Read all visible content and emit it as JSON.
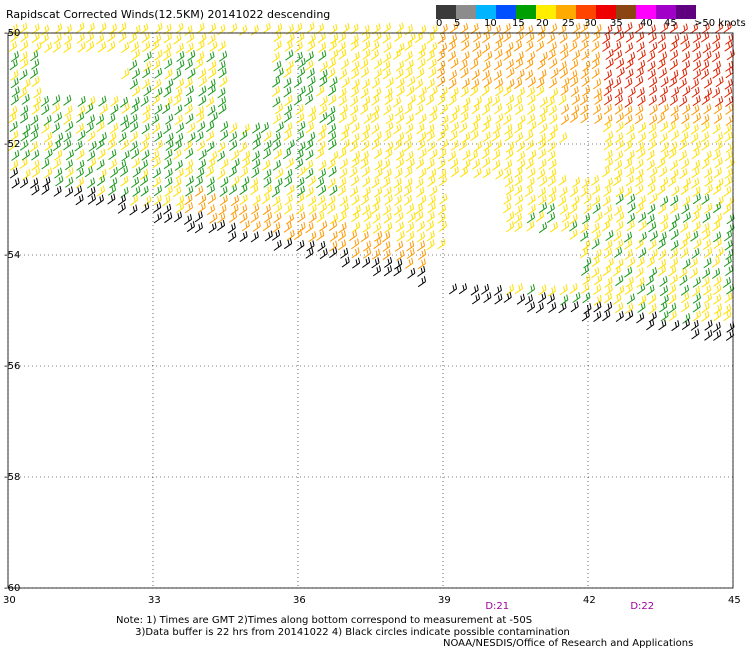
{
  "title": "Rapidscat Corrected Winds(12.5KM) 20141022 descending",
  "legend": {
    "labels": [
      "0",
      "5",
      "10",
      "15",
      "20",
      "25",
      "30",
      "35",
      "40",
      "45",
      ">50 knots"
    ],
    "colors": [
      "#3a3a3a",
      "#8c8c8c",
      "#00b4ff",
      "#0050ff",
      "#00a000",
      "#ffee00",
      "#ffaa00",
      "#ff4400",
      "#ee0000",
      "#8b4513",
      "#ff00ff",
      "#a000c8",
      "#600080"
    ]
  },
  "map": {
    "lat_labels": [
      "-50",
      "-52",
      "-54",
      "-56",
      "-58",
      "-60"
    ],
    "lon_labels": [
      "30",
      "33",
      "36",
      "39",
      "42",
      "45"
    ],
    "lat_range": [
      -60,
      -50
    ],
    "lon_range": [
      30,
      45
    ],
    "time_labels": [
      {
        "text": "D:21",
        "lon": 40.0
      },
      {
        "text": "D:22",
        "lon": 43.0
      }
    ],
    "barb_colors": {
      "calm": "#000000",
      "green": "#1a9a1a",
      "yellow": "#ffe000",
      "orange": "#ff9900",
      "red": "#dd2200"
    }
  },
  "notes": {
    "line1": "Note: 1) Times are GMT 2)Times along bottom correspond to measurement at -50S",
    "line2": "3)Data buffer is 22 hrs from 20141022 4) Black circles indicate possible contamination"
  },
  "credit": "NOAA/NESDIS/Office of Research and Applications"
}
